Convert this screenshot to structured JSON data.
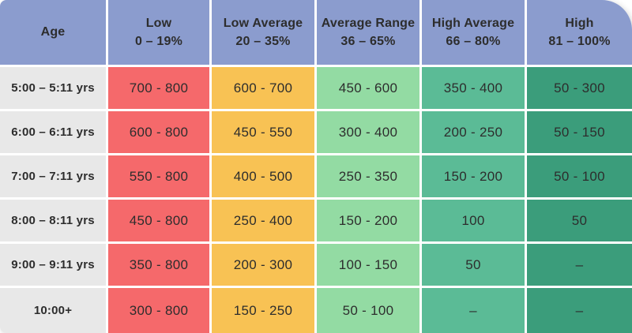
{
  "table": {
    "header": {
      "age": "Age",
      "cols": [
        {
          "label": "Low",
          "range": "0 – 19%"
        },
        {
          "label": "Low Average",
          "range": "20 – 35%"
        },
        {
          "label": "Average Range",
          "range": "36 – 65%"
        },
        {
          "label": "High Average",
          "range": "66 – 80%"
        },
        {
          "label": "High",
          "range": "81 – 100%"
        }
      ]
    },
    "rows": [
      {
        "age": "5:00 – 5:11 yrs",
        "cells": [
          "700 - 800",
          "600 - 700",
          "450 - 600",
          "350 - 400",
          "50 - 300"
        ]
      },
      {
        "age": "6:00 – 6:11 yrs",
        "cells": [
          "600 - 800",
          "450 - 550",
          "300 - 400",
          "200 - 250",
          "50 - 150"
        ]
      },
      {
        "age": "7:00 – 7:11 yrs",
        "cells": [
          "550 - 800",
          "400 - 500",
          "250 - 350",
          "150 - 200",
          "50 - 100"
        ]
      },
      {
        "age": "8:00 – 8:11 yrs",
        "cells": [
          "450 - 800",
          "250 - 400",
          "150 - 200",
          "100",
          "50"
        ]
      },
      {
        "age": "9:00 – 9:11 yrs",
        "cells": [
          "350 - 800",
          "200 - 300",
          "100 - 150",
          "50",
          "–"
        ]
      },
      {
        "age": "10:00+",
        "cells": [
          "300 - 800",
          "150 - 250",
          "50 - 100",
          "–",
          "–"
        ]
      }
    ]
  },
  "colors": {
    "header_blue": "#8b9cce",
    "age_gray": "#e8e8e8",
    "low_red": "#f5696b",
    "low_average_orange": "#f8c254",
    "average_green": "#93dba3",
    "high_average_green": "#5bbb96",
    "high_green": "#3b9d7b",
    "text": "#2d2d2d",
    "grid_gap": "#ffffff"
  },
  "chart_data": {
    "type": "table",
    "columns": [
      "Age",
      "Low 0 – 19%",
      "Low Average 20 – 35%",
      "Average Range 36 – 65%",
      "High Average 66 – 80%",
      "High 81 – 100%"
    ],
    "rows": [
      [
        "5:00 – 5:11 yrs",
        "700 - 800",
        "600 - 700",
        "450 - 600",
        "350 - 400",
        "50 - 300"
      ],
      [
        "6:00 – 6:11 yrs",
        "600 - 800",
        "450 - 550",
        "300 - 400",
        "200 - 250",
        "50 - 150"
      ],
      [
        "7:00 – 7:11 yrs",
        "550 - 800",
        "400 - 500",
        "250 - 350",
        "150 - 200",
        "50 - 100"
      ],
      [
        "8:00 – 8:11 yrs",
        "450 - 800",
        "250 - 400",
        "150 - 200",
        "100",
        "50"
      ],
      [
        "9:00 – 9:11 yrs",
        "350 - 800",
        "200 - 300",
        "100 - 150",
        "50",
        "–"
      ],
      [
        "10:00+",
        "300 - 800",
        "150 - 250",
        "50 - 100",
        "–",
        "–"
      ]
    ]
  }
}
